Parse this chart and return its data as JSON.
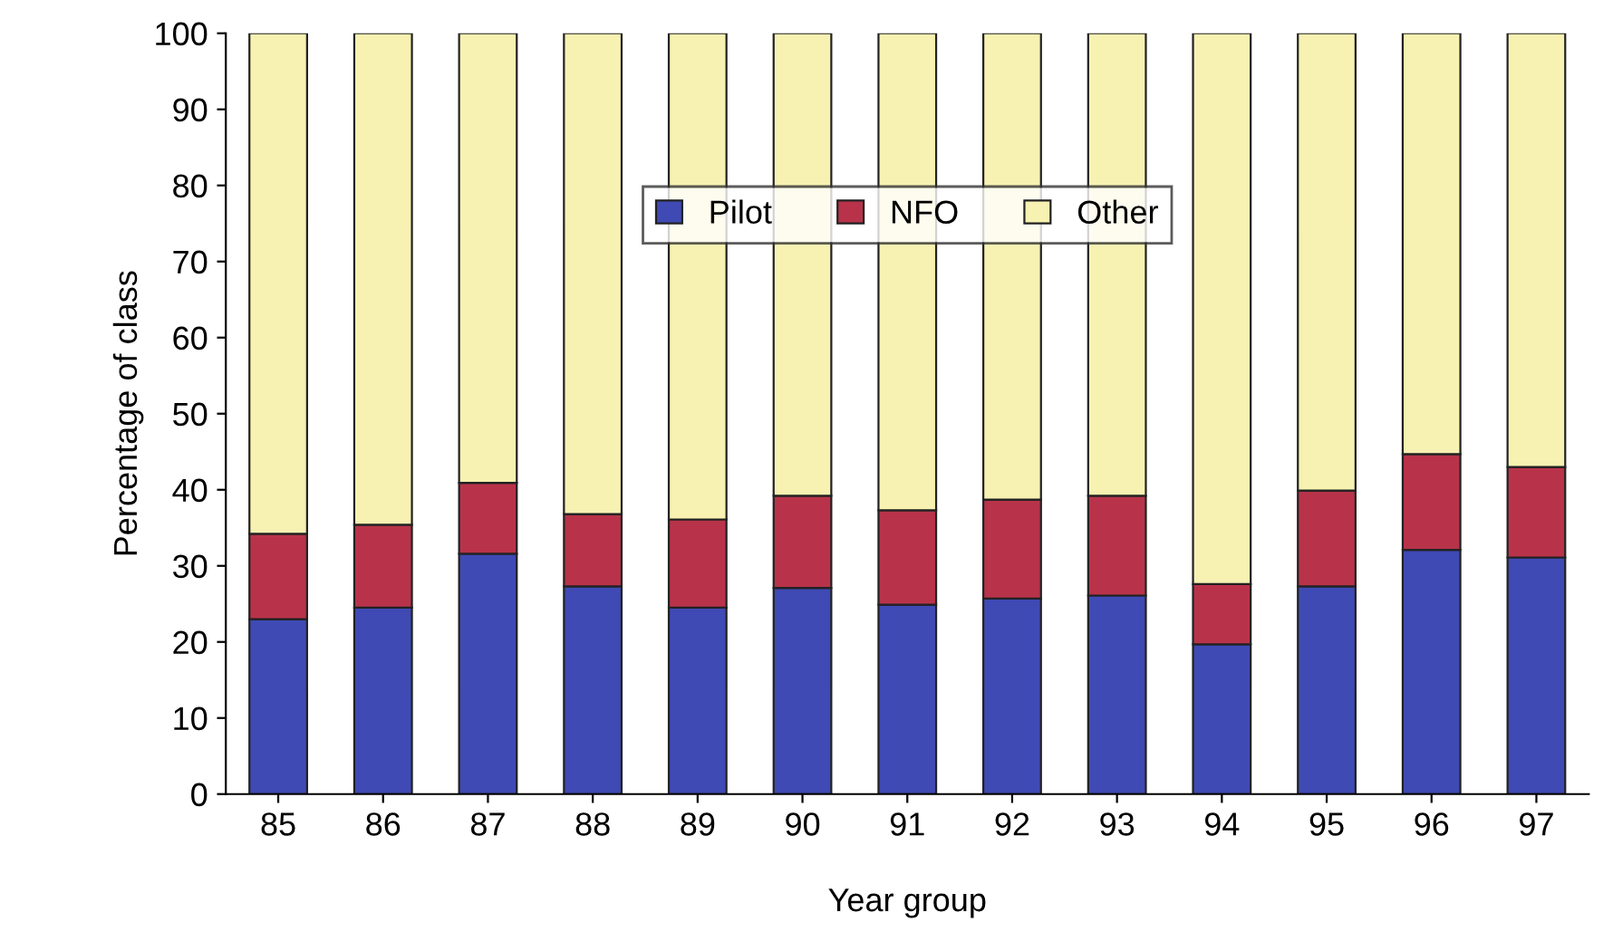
{
  "chart_data": {
    "type": "bar",
    "stacked": true,
    "xlabel": "Year group",
    "ylabel": "Percentage of class",
    "categories": [
      "85",
      "86",
      "87",
      "88",
      "89",
      "90",
      "91",
      "92",
      "93",
      "94",
      "95",
      "96",
      "97"
    ],
    "series": [
      {
        "name": "Pilot",
        "color": "#3f4ab4",
        "values": [
          23.0,
          24.5,
          31.6,
          27.3,
          24.5,
          27.1,
          24.9,
          25.7,
          26.1,
          19.7,
          27.3,
          32.1,
          31.1
        ]
      },
      {
        "name": "NFO",
        "color": "#b8334a",
        "values": [
          11.2,
          10.9,
          9.3,
          9.5,
          11.6,
          12.1,
          12.4,
          13.0,
          13.1,
          7.9,
          12.6,
          12.6,
          11.9
        ]
      },
      {
        "name": "Other",
        "color": "#f7f2b2",
        "values": [
          65.8,
          64.6,
          59.1,
          63.2,
          63.9,
          60.8,
          62.7,
          61.3,
          60.8,
          72.4,
          60.1,
          55.3,
          57.0
        ]
      }
    ],
    "ylim": [
      0,
      100
    ],
    "yticks": [
      0,
      10,
      20,
      30,
      40,
      50,
      60,
      70,
      80,
      90,
      100
    ],
    "grid": false,
    "legend": "top"
  }
}
